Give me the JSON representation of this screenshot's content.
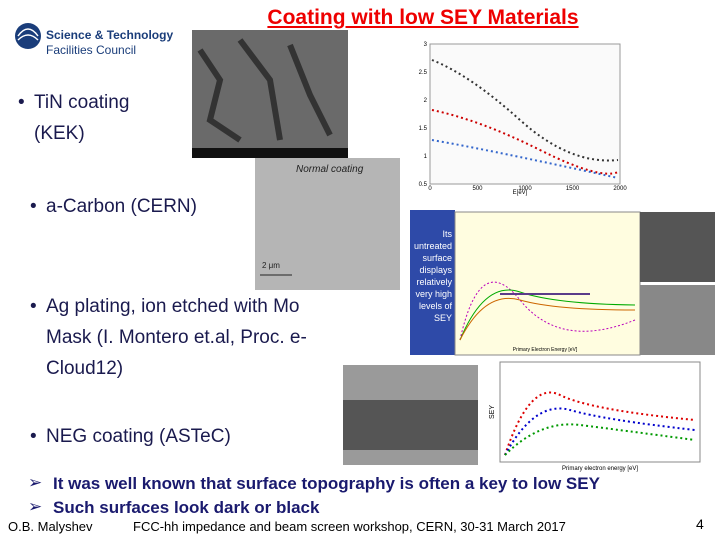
{
  "header": {
    "title": "Coating with low SEY Materials",
    "logo": [
      "Science & Technology",
      "Facilities Council"
    ]
  },
  "bullets": [
    "TiN coating (KEK)",
    "a-Carbon (CERN)",
    "Ag plating, ion etched with Mo Mask (I. Montero et.al, Proc. e-Cloud12)",
    "NEG coating (ASTeC)"
  ],
  "figures": {
    "tin_chart": {
      "x_label": "E[eV]",
      "x_ticks": [
        "0",
        "500",
        "1000",
        "1500",
        "2000"
      ],
      "y_ticks": [
        "0.5",
        "1",
        "1.5",
        "2",
        "2.5",
        "3"
      ]
    },
    "carbon_image": {
      "caption": "Normal coating",
      "scale": "2 μm"
    },
    "ag_chart": {
      "note": "Its untreated surface displays relatively very high levels of SEY",
      "x_label": "Primary Electron Energy [eV]"
    },
    "neg_chart": {
      "y_label": "SEY",
      "x_label": "Primary electron energy [eV]"
    }
  },
  "conclusions": [
    "It was well known that surface topography is often a key to low SEY",
    "Such surfaces look dark or black"
  ],
  "footer": {
    "author": "O.B. Malyshev",
    "event": "FCC-hh impedance and beam screen workshop, CERN, 30-31 March 2017",
    "page": "4"
  }
}
